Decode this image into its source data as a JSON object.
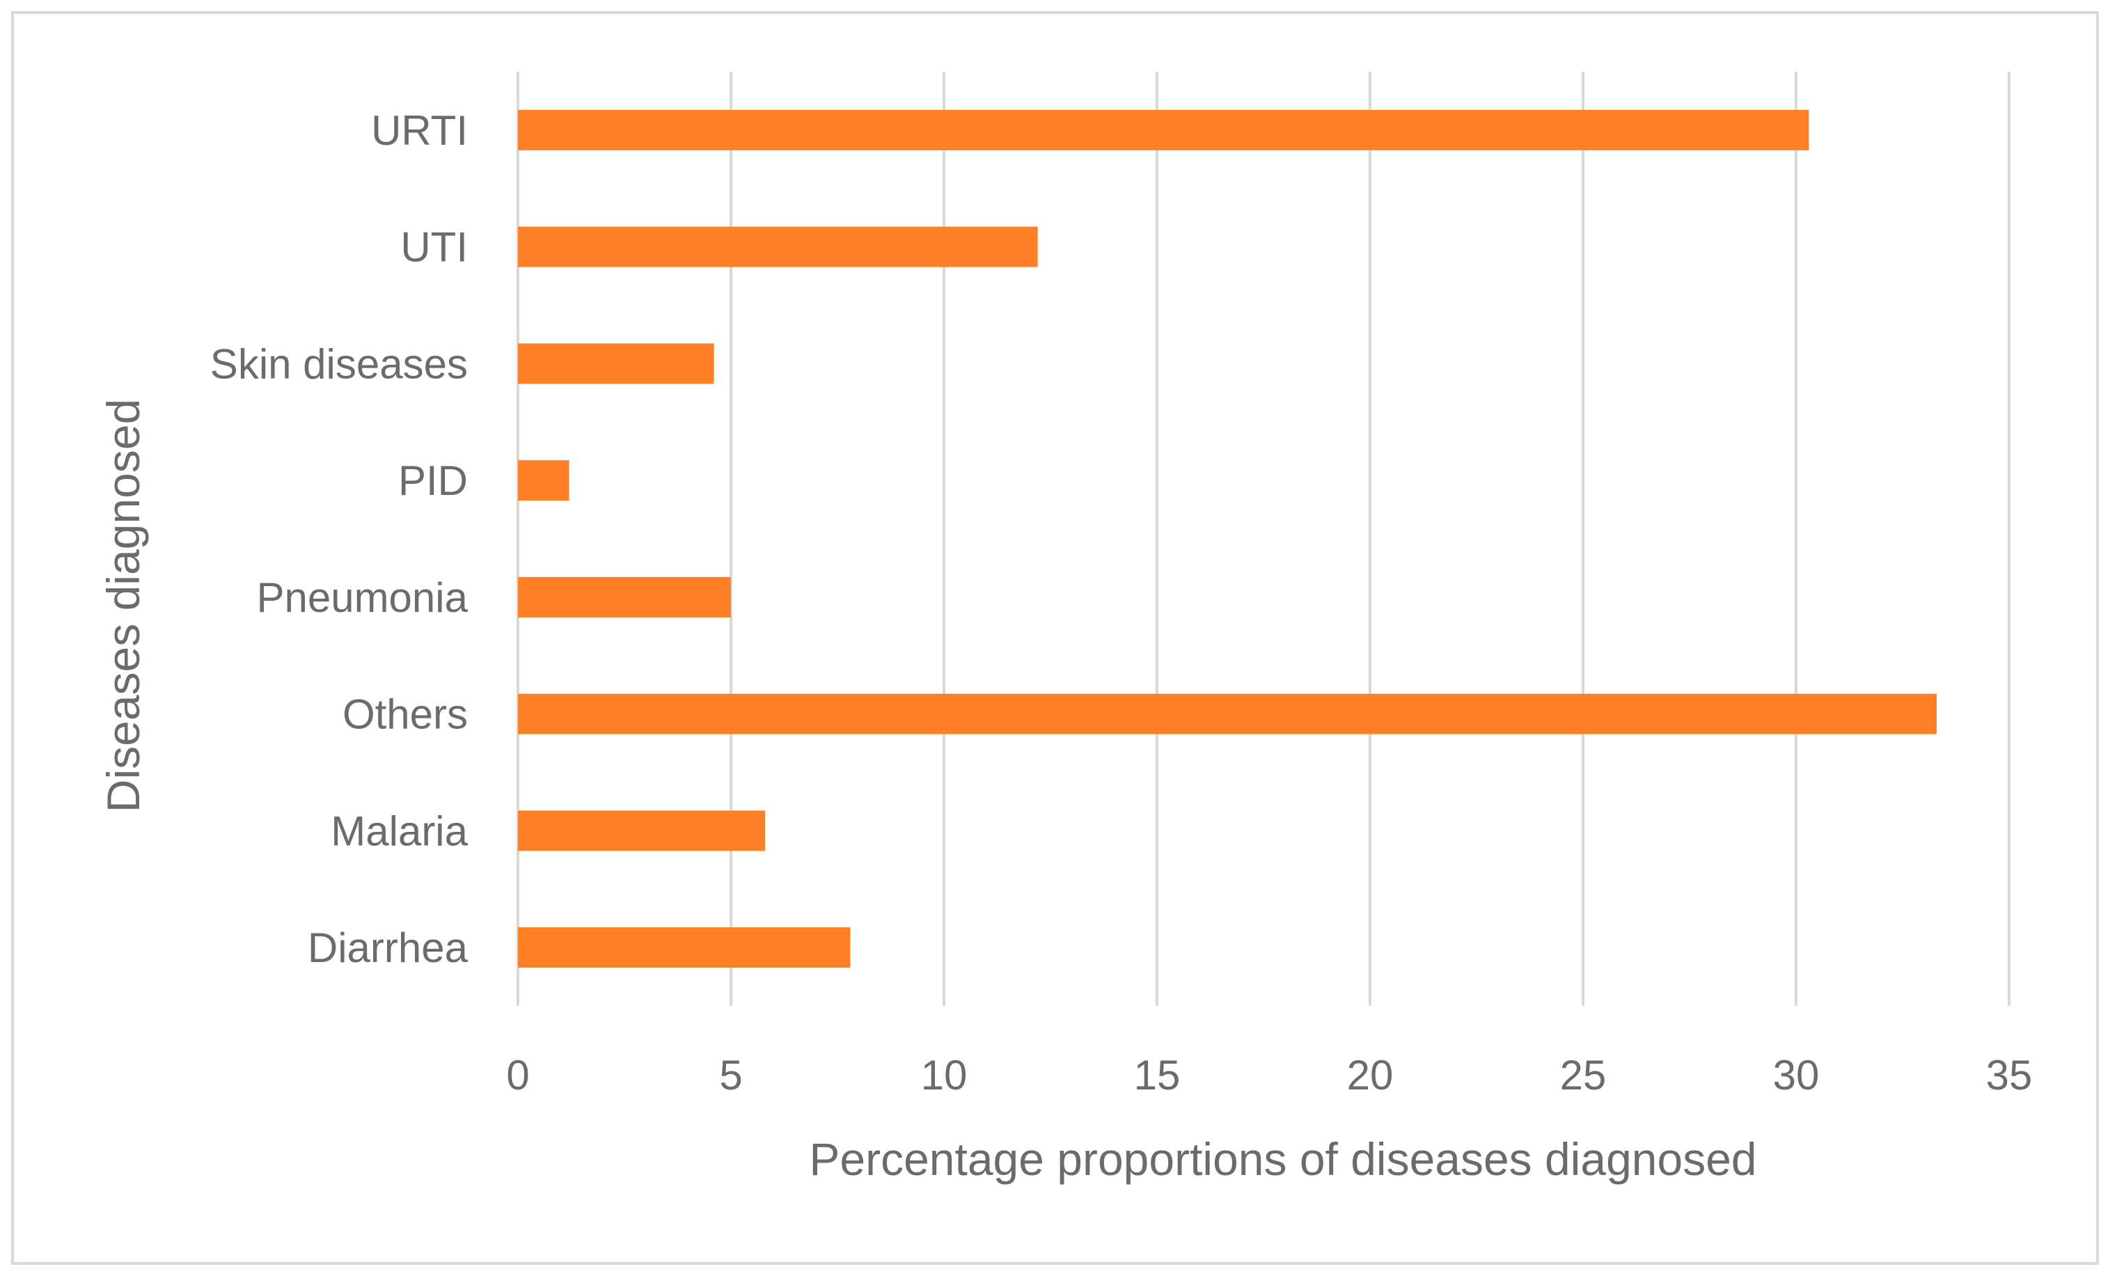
{
  "chart_data": {
    "type": "bar",
    "orientation": "horizontal",
    "title": "",
    "xlabel": "Percentage proportions of diseases diagnosed",
    "ylabel": "Diseases diagnosed",
    "categories": [
      "URTI",
      "UTI",
      "Skin diseases",
      "PID",
      "Pneumonia",
      "Others",
      "Malaria",
      "Diarrhea"
    ],
    "values": [
      30.3,
      12.2,
      4.6,
      1.2,
      5.0,
      33.3,
      5.8,
      7.8
    ],
    "xlim": [
      0,
      35
    ],
    "xticks": [
      0,
      5,
      10,
      15,
      20,
      25,
      30,
      35
    ],
    "grid": true,
    "legend": "none",
    "bar_color": "#FF7F27",
    "grid_color": "#d9d9d9",
    "text_color": "#6b6b6b"
  }
}
